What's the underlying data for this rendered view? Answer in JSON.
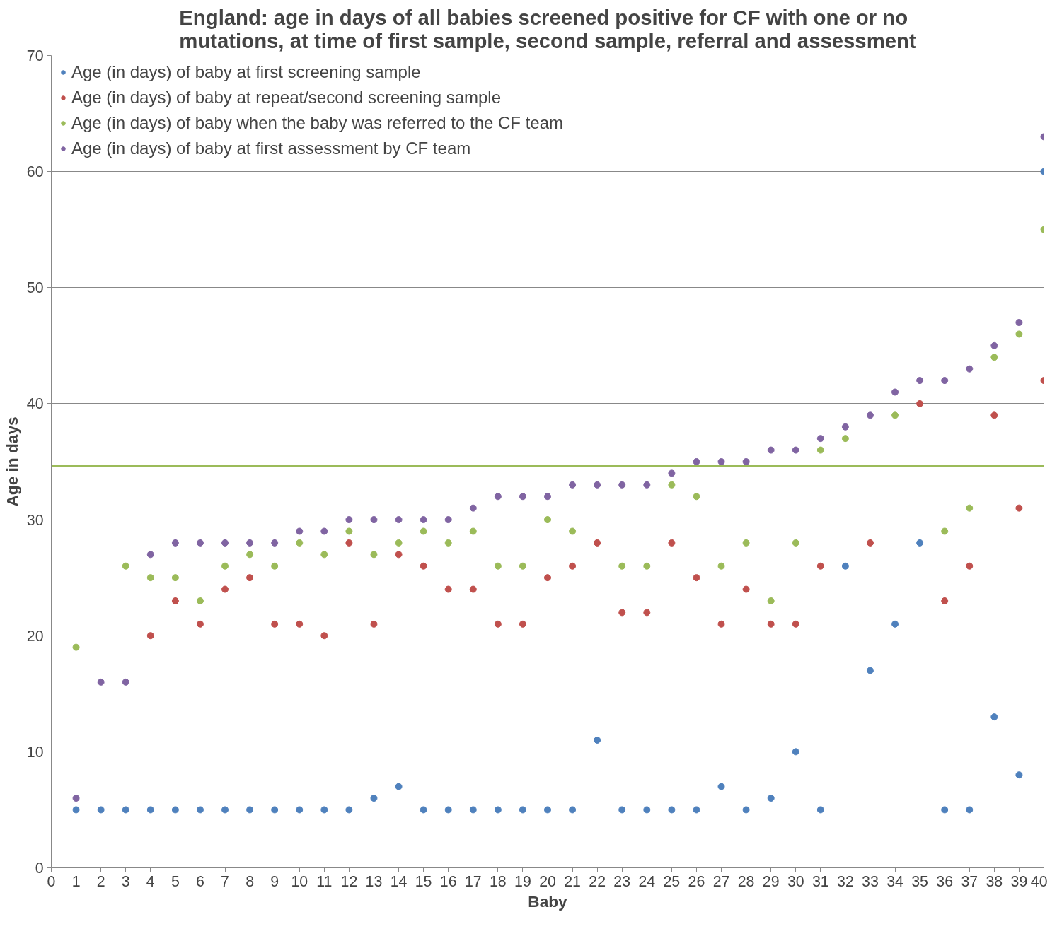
{
  "chart_data": {
    "type": "scatter",
    "title": "England: age in days of all babies screened positive for CF with one or no mutations, at time of first sample, second sample, referral and assessment",
    "xlabel": "Baby",
    "ylabel": "Age in days",
    "x": [
      1,
      2,
      3,
      4,
      5,
      6,
      7,
      8,
      9,
      10,
      11,
      12,
      13,
      14,
      15,
      16,
      17,
      18,
      19,
      20,
      21,
      22,
      23,
      24,
      25,
      26,
      27,
      28,
      29,
      30,
      31,
      32,
      33,
      34,
      35,
      36,
      37,
      38,
      39,
      40
    ],
    "series": [
      {
        "name": "Age (in days) of baby at first screening sample",
        "color": "#4f81bd",
        "values": [
          5,
          5,
          5,
          5,
          5,
          5,
          5,
          5,
          5,
          5,
          5,
          5,
          6,
          7,
          5,
          5,
          5,
          5,
          5,
          5,
          5,
          11,
          5,
          5,
          5,
          5,
          7,
          5,
          6,
          10,
          5,
          26,
          17,
          21,
          28,
          5,
          5,
          13,
          8,
          60
        ]
      },
      {
        "name": "Age (in days) of baby at repeat/second screening sample",
        "color": "#c0504d",
        "values": [
          null,
          null,
          null,
          20,
          23,
          21,
          24,
          25,
          21,
          21,
          20,
          28,
          21,
          27,
          26,
          24,
          24,
          21,
          21,
          25,
          26,
          28,
          22,
          22,
          28,
          25,
          21,
          24,
          21,
          21,
          26,
          null,
          28,
          null,
          40,
          23,
          26,
          39,
          31,
          42
        ]
      },
      {
        "name": "Age (in days) of baby when the baby was referred to the CF team",
        "color": "#9bbb59",
        "values": [
          19,
          null,
          26,
          25,
          25,
          23,
          26,
          27,
          26,
          28,
          27,
          29,
          27,
          28,
          29,
          28,
          29,
          26,
          26,
          30,
          29,
          null,
          26,
          26,
          33,
          32,
          26,
          28,
          23,
          28,
          36,
          37,
          null,
          39,
          null,
          29,
          31,
          44,
          46,
          55
        ]
      },
      {
        "name": "Age (in days) of baby at first assessment by CF team",
        "color": "#8064a2",
        "values": [
          6,
          16,
          16,
          27,
          28,
          28,
          28,
          28,
          28,
          29,
          29,
          30,
          30,
          30,
          30,
          30,
          31,
          32,
          32,
          32,
          33,
          33,
          33,
          33,
          34,
          35,
          35,
          35,
          36,
          36,
          37,
          38,
          39,
          41,
          42,
          42,
          43,
          45,
          47,
          63
        ]
      }
    ],
    "ref_lines": [
      {
        "axis": "y",
        "value": 34.6,
        "color": "#9bbb59"
      }
    ],
    "xlim": [
      0,
      40
    ],
    "xticks": [
      0,
      1,
      2,
      3,
      4,
      5,
      6,
      7,
      8,
      9,
      10,
      11,
      12,
      13,
      14,
      15,
      16,
      17,
      18,
      19,
      20,
      21,
      22,
      23,
      24,
      25,
      26,
      27,
      28,
      29,
      30,
      31,
      32,
      33,
      34,
      35,
      36,
      37,
      38,
      39,
      40
    ],
    "ylim": [
      0,
      70
    ],
    "yticks": [
      0,
      10,
      20,
      30,
      40,
      50,
      60,
      70
    ],
    "grid": "y",
    "legend": "top",
    "marker": "circle"
  }
}
